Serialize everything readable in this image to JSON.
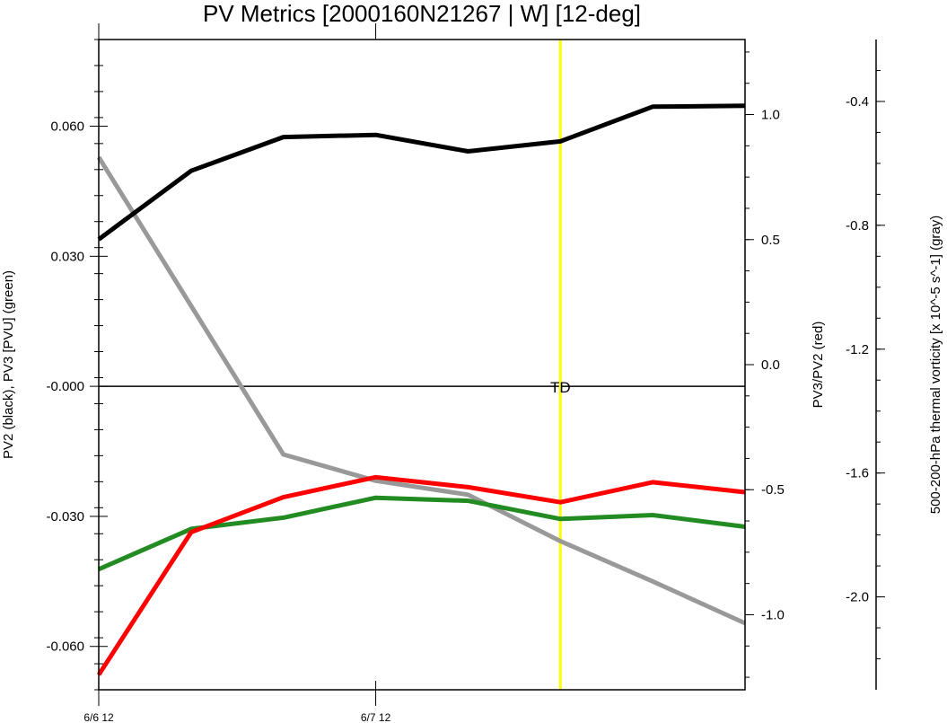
{
  "chart_data": {
    "type": "line",
    "title": "PV Metrics [2000160N21267 | W] [12-deg]",
    "x": [
      "6/6 12",
      "6/7 00",
      "6/7 06",
      "6/7 12",
      "6/7 18",
      "6/8 00",
      "6/8 06",
      "6/8 12"
    ],
    "x_axis": {
      "tick_labels": [
        "6/6 12",
        "6/7 12"
      ],
      "range": [
        "6/6 12",
        "6/8 12"
      ]
    },
    "y_left": {
      "label": "PV2 (black), PV3 [PVU] (green)",
      "ylim": [
        -0.07,
        0.08
      ],
      "tick_labels": [
        "0.060",
        "0.030",
        "-0.000",
        "-0.030",
        "-0.060"
      ]
    },
    "y_right": {
      "label": "PV3/PV2 (red)",
      "ylim": [
        -1.3,
        1.3
      ],
      "tick_labels": [
        "1.0",
        "0.5",
        "0.0",
        "-0.5",
        "-1.0"
      ]
    },
    "y_far_right": {
      "label": "500-200-hPa thermal vorticity [x 10^-5 s^-1] (gray)",
      "ylim": [
        -2.3,
        -0.2
      ],
      "tick_labels": [
        "-0.4",
        "-0.8",
        "-1.2",
        "-1.6",
        "-2.0"
      ]
    },
    "series": [
      {
        "name": "PV2",
        "axis": "left",
        "color": "#000000",
        "values": [
          0.0339,
          0.0497,
          0.0575,
          0.058,
          0.0542,
          0.0565,
          0.0645,
          0.0647
        ]
      },
      {
        "name": "PV3",
        "axis": "left",
        "color": "#228b22",
        "values": [
          -0.0422,
          -0.0329,
          -0.0303,
          -0.0257,
          -0.0264,
          -0.0306,
          -0.0297,
          -0.0324
        ]
      },
      {
        "name": "PV3/PV2",
        "axis": "right",
        "color": "#ff0000",
        "values": [
          -1.24,
          -0.67,
          -0.53,
          -0.45,
          -0.49,
          -0.55,
          -0.47,
          -0.51
        ]
      },
      {
        "name": "thermal vorticity",
        "axis": "farright",
        "color": "#999999",
        "values": [
          -0.58,
          -1.06,
          -1.54,
          -1.625,
          -1.67,
          -1.82,
          -1.95,
          -2.085
        ]
      }
    ],
    "zero_line": 0,
    "marker": {
      "label": "TD",
      "x": "6/8 00",
      "color": "#ffff00"
    }
  }
}
